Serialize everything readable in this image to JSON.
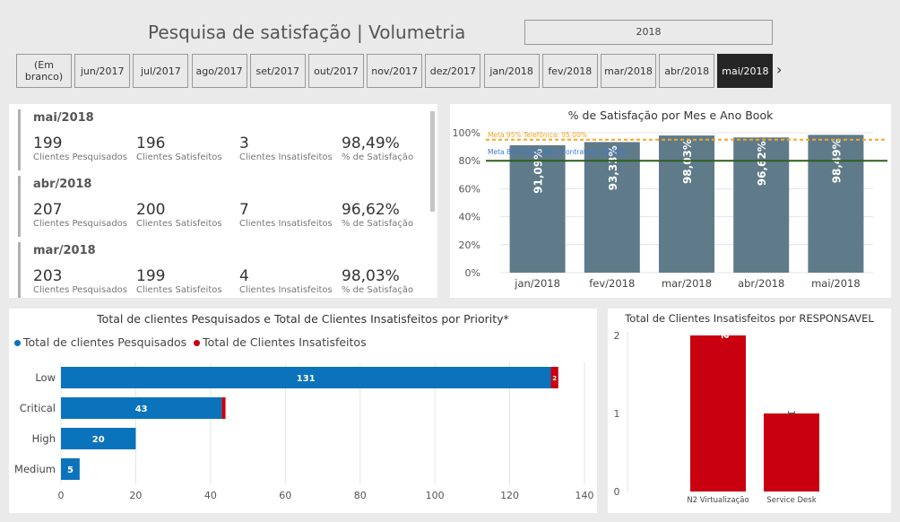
{
  "header": {
    "title": "Pesquisa de satisfação | Volumetria",
    "year_filter": "2018"
  },
  "slicer": {
    "items": [
      "(Em branco)",
      "jun/2017",
      "jul/2017",
      "ago/2017",
      "set/2017",
      "out/2017",
      "nov/2017",
      "dez/2017",
      "jan/2018",
      "fev/2018",
      "mar/2018",
      "abr/2018",
      "mai/2018"
    ],
    "selected": "mai/2018",
    "next_icon": "chevron-right-icon"
  },
  "kpis": [
    {
      "month": "mai/2018",
      "pesquisados": "199",
      "satisfeitos": "196",
      "insatisfeitos": "3",
      "satisfacao": "98,49%"
    },
    {
      "month": "abr/2018",
      "pesquisados": "207",
      "satisfeitos": "200",
      "insatisfeitos": "7",
      "satisfacao": "96,62%"
    },
    {
      "month": "mar/2018",
      "pesquisados": "203",
      "satisfeitos": "199",
      "insatisfeitos": "4",
      "satisfacao": "98,03%"
    }
  ],
  "kpi_labels": {
    "pesquisados": "Clientes Pesquisados",
    "satisfeitos": "Clientes Satisfeitos",
    "insatisfeitos": "Clientes Insatisfeitos",
    "satisfacao": "% de Satisfação"
  },
  "colors": {
    "bar_gray": "#5f7b8a",
    "blue": "#0a73bb",
    "red": "#c8000f",
    "orange_line": "#f5a623",
    "green_line": "#2e5e1e",
    "meta_blue": "#3a7bd5"
  },
  "chart_data": [
    {
      "type": "bar",
      "title": "% de Satisfação por Mes e Ano Book",
      "categories": [
        "jan/2018",
        "fev/2018",
        "mar/2018",
        "abr/2018",
        "mai/2018"
      ],
      "values": [
        91.09,
        93.33,
        98.03,
        96.62,
        98.49
      ],
      "labels": [
        "91,09%",
        "93,33%",
        "98,03%",
        "96,62%",
        "98,49%"
      ],
      "ylim": [
        0,
        100
      ],
      "yticks": [
        "0%",
        "20%",
        "40%",
        "60%",
        "80%",
        "100%"
      ],
      "reference_lines": [
        {
          "label": "Meta 95% Telefônica: 95,00%",
          "value": 95
        },
        {
          "label": "Meta 80% Gene/Item Contratual: 80,00%",
          "value": 80
        }
      ]
    },
    {
      "type": "bar",
      "orientation": "horizontal",
      "stacked": true,
      "title": "Total de clientes Pesquisados e Total de Clientes Insatisfeitos por Priority*",
      "categories": [
        "Low",
        "Critical",
        "High",
        "Medium"
      ],
      "series": [
        {
          "name": "Total de clientes Pesquisados",
          "values": [
            131,
            43,
            20,
            5
          ]
        },
        {
          "name": "Total de Clientes Insatisfeitos",
          "values": [
            2,
            1,
            0,
            0
          ]
        }
      ],
      "data_labels": {
        "Total de clientes Pesquisados": [
          "131",
          "43",
          "20",
          "5"
        ],
        "Total de Clientes Insatisfeitos": [
          "2",
          "",
          "",
          ""
        ]
      },
      "xlim": [
        0,
        140
      ],
      "xticks": [
        "0",
        "20",
        "40",
        "60",
        "80",
        "100",
        "120",
        "140"
      ]
    },
    {
      "type": "bar",
      "title": "Total de Clientes Insatisfeitos por RESPONSAVEL",
      "categories": [
        "N2 Virtualização",
        "Service Desk"
      ],
      "values": [
        2,
        1
      ],
      "labels": [
        "2",
        "1"
      ],
      "ylim": [
        0,
        2
      ],
      "yticks": [
        "0",
        "1",
        "2"
      ]
    }
  ]
}
